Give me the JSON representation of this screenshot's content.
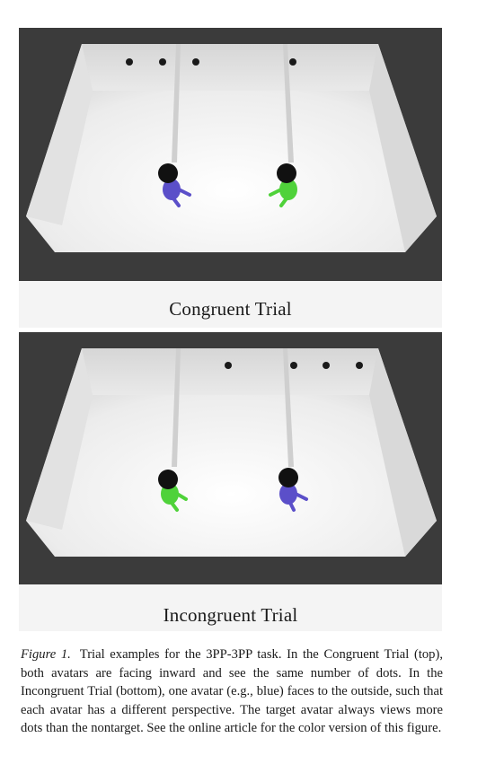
{
  "figure": {
    "panels": [
      {
        "id": "congruent",
        "caption": "Congruent Trial",
        "left_room": {
          "avatar_color": "#5b4fc9",
          "facing": "inward",
          "dots_on_back_wall": 3
        },
        "right_room": {
          "avatar_color": "#4fd23a",
          "facing": "inward",
          "dots_on_back_wall": 1
        }
      },
      {
        "id": "incongruent",
        "caption": "Incongruent Trial",
        "left_room": {
          "avatar_color": "#4fd23a",
          "facing": "inward",
          "dots_on_back_wall": 1
        },
        "right_room": {
          "avatar_color": "#5b4fc9",
          "facing": "outward",
          "dots_on_back_wall": 3
        }
      }
    ],
    "caption_label": "Figure 1.",
    "caption_text": "Trial examples for the 3PP-3PP task. In the Congruent Trial (top), both avatars are facing inward and see the same number of dots. In the Incongruent Trial (bottom), one avatar (e.g., blue) faces to the outside, such that each avatar has a different perspective. The target avatar always views more dots than the nontarget. See the online article for the color version of this figure."
  }
}
